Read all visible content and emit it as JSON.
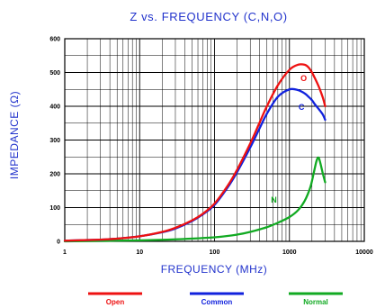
{
  "chart_data": {
    "type": "line",
    "title": "Z vs. FREQUENCY (C,N,O)",
    "xlabel": "FREQUENCY (MHz)",
    "ylabel": "IMPEDANCE (Ω)",
    "x_scale": "log",
    "xlim": [
      1,
      10000
    ],
    "ylim": [
      0,
      600
    ],
    "x_ticks": [
      "1",
      "10",
      "100",
      "1000",
      "10000"
    ],
    "y_ticks": [
      "0",
      "100",
      "200",
      "300",
      "400",
      "500",
      "600"
    ],
    "grid": true,
    "legend_placement": "bottom",
    "series": [
      {
        "name": "Open",
        "label": "O",
        "color": "#ee1111",
        "x": [
          1,
          3,
          5,
          10,
          20,
          30,
          50,
          70,
          100,
          150,
          200,
          300,
          400,
          500,
          700,
          1000,
          1300,
          1600,
          1800,
          2000,
          2200,
          2500,
          2800,
          3000
        ],
        "y": [
          2,
          5,
          8,
          15,
          28,
          40,
          62,
          82,
          112,
          165,
          212,
          290,
          352,
          400,
          462,
          508,
          523,
          523,
          515,
          500,
          482,
          455,
          425,
          400
        ]
      },
      {
        "name": "Common",
        "label": "C",
        "color": "#1122dd",
        "x": [
          1,
          3,
          5,
          10,
          20,
          30,
          50,
          70,
          100,
          150,
          200,
          300,
          400,
          500,
          700,
          1000,
          1300,
          1600,
          1800,
          2000,
          2200,
          2500,
          2800,
          3000
        ],
        "y": [
          2,
          5,
          8,
          15,
          27,
          38,
          60,
          80,
          108,
          160,
          205,
          278,
          335,
          378,
          428,
          450,
          448,
          438,
          428,
          418,
          405,
          390,
          375,
          360
        ]
      },
      {
        "name": "Normal",
        "label": "N",
        "color": "#11aa22",
        "x": [
          1,
          10,
          30,
          100,
          200,
          300,
          500,
          700,
          1000,
          1300,
          1600,
          1900,
          2100,
          2300,
          2450,
          2600,
          2800,
          3000
        ],
        "y": [
          0,
          3,
          6,
          12,
          20,
          28,
          42,
          55,
          72,
          92,
          120,
          160,
          200,
          238,
          248,
          230,
          200,
          175
        ]
      }
    ]
  }
}
